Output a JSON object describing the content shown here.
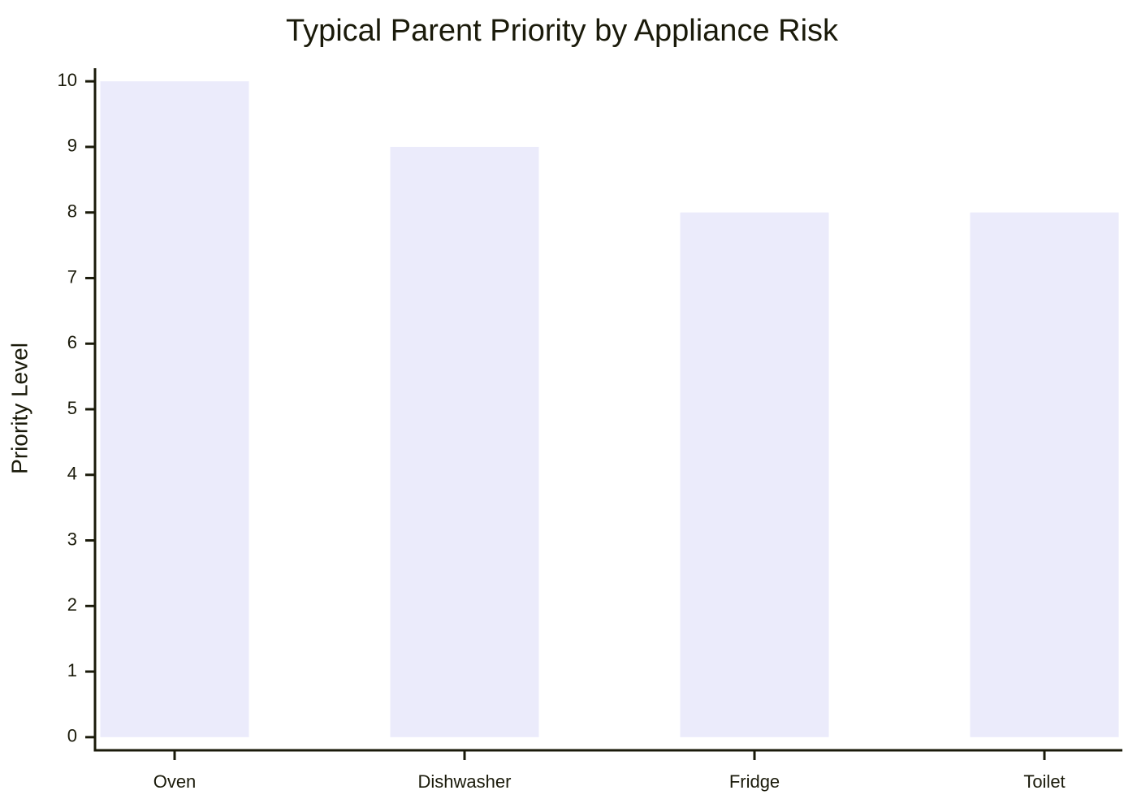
{
  "chart_data": {
    "type": "bar",
    "title": "Typical Parent Priority by Appliance Risk",
    "y_label": "Priority Level",
    "categories": [
      "Oven",
      "Dishwasher",
      "Fridge",
      "Toilet"
    ],
    "values": [
      10,
      9,
      8,
      8
    ],
    "color": "#ebebfb",
    "ylim": [
      -0.2,
      10.2
    ],
    "yticks": [
      0,
      1,
      2,
      3,
      4,
      5,
      6,
      7,
      8,
      9,
      10
    ],
    "grid": false
  }
}
